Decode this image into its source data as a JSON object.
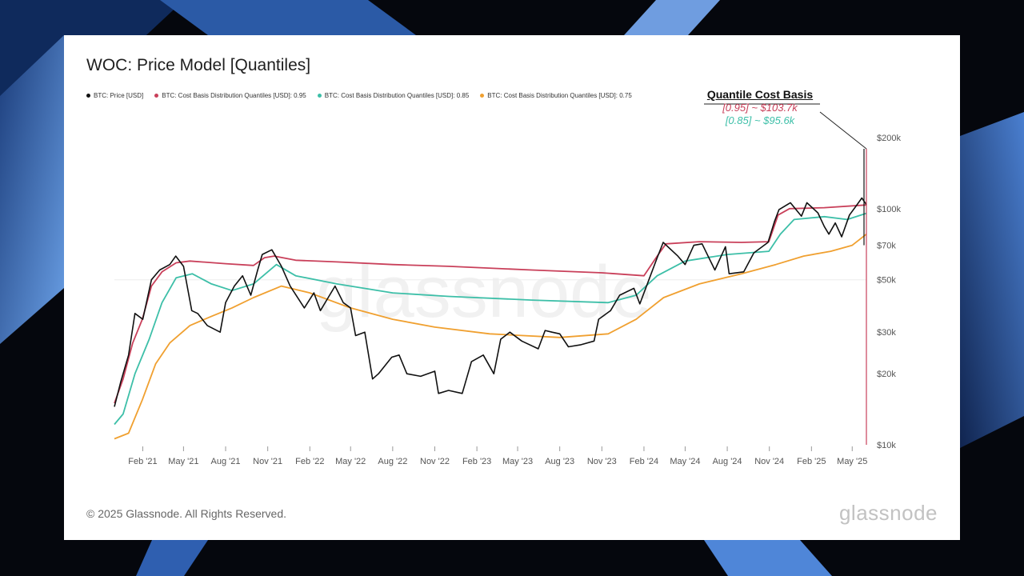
{
  "page": {
    "title": "WOC: Price Model [Quantiles]",
    "footer": "© 2025 Glassnode. All Rights Reserved.",
    "brand": "glassnode",
    "watermark": "glassnode"
  },
  "legend": [
    {
      "label": "BTC: Price [USD]",
      "color": "#111111"
    },
    {
      "label": "BTC: Cost Basis Distribution Quantiles [USD]: 0.95",
      "color": "#c9405a"
    },
    {
      "label": "BTC: Cost Basis Distribution Quantiles [USD]: 0.85",
      "color": "#3dbfa8"
    },
    {
      "label": "BTC: Cost Basis Distribution Quantiles [USD]: 0.75",
      "color": "#f0a030"
    }
  ],
  "annotation": {
    "title": "Quantile Cost Basis",
    "line1": "[0.95] ~ $103.7k",
    "line2": "[0.85] ~ $95.6k",
    "color1": "#c9405a",
    "color2": "#3dbfa8"
  },
  "chart_data": {
    "type": "line",
    "x_type": "date",
    "x_range": [
      "2020-12",
      "2025-06"
    ],
    "y_scale": "log",
    "ylim": [
      10000,
      200000
    ],
    "x_ticks": [
      "Feb '21",
      "May '21",
      "Aug '21",
      "Nov '21",
      "Feb '22",
      "May '22",
      "Aug '22",
      "Nov '22",
      "Feb '23",
      "May '23",
      "Aug '23",
      "Nov '23",
      "Feb '24",
      "May '24",
      "Aug '24",
      "Nov '24",
      "Feb '25",
      "May '25"
    ],
    "x_tick_dates": [
      "2021-02",
      "2021-05",
      "2021-08",
      "2021-11",
      "2022-02",
      "2022-05",
      "2022-08",
      "2022-11",
      "2023-02",
      "2023-05",
      "2023-08",
      "2023-11",
      "2024-02",
      "2024-05",
      "2024-08",
      "2024-11",
      "2025-02",
      "2025-05"
    ],
    "y_ticks": [
      {
        "value": 10000,
        "label": "$10k"
      },
      {
        "value": 20000,
        "label": "$20k"
      },
      {
        "value": 30000,
        "label": "$30k"
      },
      {
        "value": 50000,
        "label": "$50k"
      },
      {
        "value": 70000,
        "label": "$70k"
      },
      {
        "value": 100000,
        "label": "$100k"
      },
      {
        "value": 200000,
        "label": "$200k"
      }
    ],
    "grid": false,
    "legend_position": "top-left",
    "series": [
      {
        "name": "BTC: Price [USD]",
        "color": "#111111",
        "points": [
          [
            "2020-12-01",
            14500
          ],
          [
            "2020-12-15",
            18500
          ],
          [
            "2021-01-01",
            24000
          ],
          [
            "2021-01-15",
            36000
          ],
          [
            "2021-02-01",
            34000
          ],
          [
            "2021-02-20",
            50000
          ],
          [
            "2021-03-10",
            55000
          ],
          [
            "2021-04-01",
            58000
          ],
          [
            "2021-04-14",
            63000
          ],
          [
            "2021-05-01",
            57000
          ],
          [
            "2021-05-19",
            37000
          ],
          [
            "2021-06-01",
            36000
          ],
          [
            "2021-06-22",
            32000
          ],
          [
            "2021-07-20",
            30000
          ],
          [
            "2021-08-01",
            40000
          ],
          [
            "2021-08-20",
            47000
          ],
          [
            "2021-09-07",
            52000
          ],
          [
            "2021-09-25",
            43000
          ],
          [
            "2021-10-10",
            55000
          ],
          [
            "2021-10-20",
            64000
          ],
          [
            "2021-11-10",
            67000
          ],
          [
            "2021-12-01",
            57000
          ],
          [
            "2021-12-20",
            47000
          ],
          [
            "2022-01-20",
            38000
          ],
          [
            "2022-02-10",
            44000
          ],
          [
            "2022-02-24",
            37000
          ],
          [
            "2022-03-28",
            47000
          ],
          [
            "2022-04-15",
            40000
          ],
          [
            "2022-05-01",
            38000
          ],
          [
            "2022-05-12",
            29000
          ],
          [
            "2022-06-01",
            30000
          ],
          [
            "2022-06-18",
            19000
          ],
          [
            "2022-07-01",
            20000
          ],
          [
            "2022-07-30",
            23500
          ],
          [
            "2022-08-15",
            24000
          ],
          [
            "2022-09-01",
            20000
          ],
          [
            "2022-10-01",
            19500
          ],
          [
            "2022-11-01",
            20500
          ],
          [
            "2022-11-09",
            16500
          ],
          [
            "2022-12-01",
            17000
          ],
          [
            "2022-12-31",
            16500
          ],
          [
            "2023-01-20",
            22500
          ],
          [
            "2023-02-15",
            24000
          ],
          [
            "2023-03-10",
            20000
          ],
          [
            "2023-03-25",
            28000
          ],
          [
            "2023-04-14",
            30000
          ],
          [
            "2023-05-10",
            27500
          ],
          [
            "2023-06-15",
            25500
          ],
          [
            "2023-06-30",
            30500
          ],
          [
            "2023-07-15",
            30000
          ],
          [
            "2023-08-01",
            29500
          ],
          [
            "2023-08-20",
            26000
          ],
          [
            "2023-09-15",
            26500
          ],
          [
            "2023-10-15",
            27500
          ],
          [
            "2023-10-25",
            34000
          ],
          [
            "2023-11-20",
            37000
          ],
          [
            "2023-12-10",
            43000
          ],
          [
            "2024-01-10",
            46000
          ],
          [
            "2024-01-23",
            39500
          ],
          [
            "2024-02-15",
            52000
          ],
          [
            "2024-03-01",
            62000
          ],
          [
            "2024-03-14",
            72000
          ],
          [
            "2024-04-15",
            63000
          ],
          [
            "2024-05-01",
            58000
          ],
          [
            "2024-05-20",
            70000
          ],
          [
            "2024-06-07",
            71000
          ],
          [
            "2024-07-05",
            55000
          ],
          [
            "2024-07-28",
            69000
          ],
          [
            "2024-08-05",
            53000
          ],
          [
            "2024-09-06",
            54000
          ],
          [
            "2024-09-28",
            65000
          ],
          [
            "2024-10-29",
            72000
          ],
          [
            "2024-11-12",
            88000
          ],
          [
            "2024-11-22",
            99000
          ],
          [
            "2024-12-17",
            106000
          ],
          [
            "2025-01-10",
            93000
          ],
          [
            "2025-01-22",
            106000
          ],
          [
            "2025-02-15",
            96000
          ],
          [
            "2025-03-01",
            84000
          ],
          [
            "2025-03-11",
            78000
          ],
          [
            "2025-03-25",
            87000
          ],
          [
            "2025-04-08",
            76000
          ],
          [
            "2025-04-25",
            94000
          ],
          [
            "2025-05-10",
            103000
          ],
          [
            "2025-05-22",
            111000
          ],
          [
            "2025-06-01",
            104000
          ]
        ]
      },
      {
        "name": "BTC: Cost Basis Distribution Quantiles [USD]: 0.95",
        "color": "#c9405a",
        "points": [
          [
            "2020-12-01",
            15000
          ],
          [
            "2020-12-20",
            19000
          ],
          [
            "2021-01-10",
            27000
          ],
          [
            "2021-01-31",
            34000
          ],
          [
            "2021-02-20",
            47000
          ],
          [
            "2021-03-15",
            54000
          ],
          [
            "2021-04-15",
            59000
          ],
          [
            "2021-05-15",
            60000
          ],
          [
            "2021-08-01",
            58500
          ],
          [
            "2021-10-01",
            57500
          ],
          [
            "2021-10-25",
            62000
          ],
          [
            "2021-11-15",
            63000
          ],
          [
            "2022-01-01",
            60500
          ],
          [
            "2022-04-01",
            59500
          ],
          [
            "2022-08-01",
            58000
          ],
          [
            "2022-12-01",
            57000
          ],
          [
            "2023-06-01",
            55000
          ],
          [
            "2023-11-01",
            53500
          ],
          [
            "2024-02-01",
            52000
          ],
          [
            "2024-03-01",
            63000
          ],
          [
            "2024-03-20",
            71000
          ],
          [
            "2024-06-01",
            72500
          ],
          [
            "2024-09-01",
            72000
          ],
          [
            "2024-10-31",
            72500
          ],
          [
            "2024-11-20",
            94000
          ],
          [
            "2024-12-15",
            100000
          ],
          [
            "2025-03-01",
            101000
          ],
          [
            "2025-06-01",
            103700
          ]
        ]
      },
      {
        "name": "BTC: Cost Basis Distribution Quantiles [USD]: 0.85",
        "color": "#3dbfa8",
        "points": [
          [
            "2020-12-01",
            12200
          ],
          [
            "2020-12-20",
            13500
          ],
          [
            "2021-01-15",
            20000
          ],
          [
            "2021-02-15",
            28000
          ],
          [
            "2021-03-15",
            40000
          ],
          [
            "2021-04-15",
            51000
          ],
          [
            "2021-05-20",
            53000
          ],
          [
            "2021-07-01",
            48000
          ],
          [
            "2021-08-15",
            45000
          ],
          [
            "2021-10-01",
            48000
          ],
          [
            "2021-11-20",
            58000
          ],
          [
            "2022-01-01",
            52000
          ],
          [
            "2022-04-01",
            48000
          ],
          [
            "2022-08-01",
            44000
          ],
          [
            "2022-12-01",
            42500
          ],
          [
            "2023-06-01",
            41000
          ],
          [
            "2023-11-15",
            40000
          ],
          [
            "2024-01-15",
            43000
          ],
          [
            "2024-03-01",
            52000
          ],
          [
            "2024-05-01",
            60000
          ],
          [
            "2024-08-01",
            64000
          ],
          [
            "2024-10-31",
            66000
          ],
          [
            "2024-11-25",
            78000
          ],
          [
            "2024-12-25",
            90000
          ],
          [
            "2025-03-01",
            92500
          ],
          [
            "2025-04-20",
            90000
          ],
          [
            "2025-06-01",
            95600
          ]
        ]
      },
      {
        "name": "BTC: Cost Basis Distribution Quantiles [USD]: 0.75",
        "color": "#f0a030",
        "points": [
          [
            "2020-12-01",
            10600
          ],
          [
            "2021-01-01",
            11200
          ],
          [
            "2021-01-31",
            15500
          ],
          [
            "2021-03-01",
            22000
          ],
          [
            "2021-04-01",
            27000
          ],
          [
            "2021-05-15",
            32000
          ],
          [
            "2021-07-01",
            35000
          ],
          [
            "2021-08-15",
            38000
          ],
          [
            "2021-10-01",
            42000
          ],
          [
            "2021-12-01",
            47000
          ],
          [
            "2022-02-01",
            44000
          ],
          [
            "2022-05-01",
            38000
          ],
          [
            "2022-08-01",
            34000
          ],
          [
            "2022-11-01",
            31500
          ],
          [
            "2023-03-01",
            29500
          ],
          [
            "2023-08-01",
            28500
          ],
          [
            "2023-11-15",
            29500
          ],
          [
            "2024-01-15",
            34000
          ],
          [
            "2024-03-15",
            42000
          ],
          [
            "2024-06-01",
            48000
          ],
          [
            "2024-09-01",
            53000
          ],
          [
            "2024-11-15",
            58000
          ],
          [
            "2025-01-15",
            63000
          ],
          [
            "2025-03-15",
            66000
          ],
          [
            "2025-05-01",
            70000
          ],
          [
            "2025-06-01",
            78000
          ]
        ]
      }
    ]
  }
}
